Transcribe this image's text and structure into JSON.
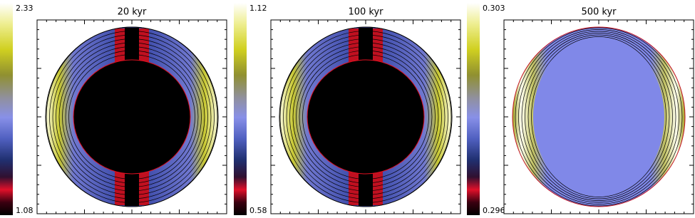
{
  "chart_data": [
    {
      "type": "contour",
      "title": "20 kyr",
      "clim": [
        1.08,
        2.33
      ]
    },
    {
      "type": "contour",
      "title": "100 kyr",
      "clim": [
        0.58,
        1.12
      ]
    },
    {
      "type": "contour",
      "title": "500 kyr",
      "clim": [
        0.296,
        0.303
      ]
    }
  ]
}
